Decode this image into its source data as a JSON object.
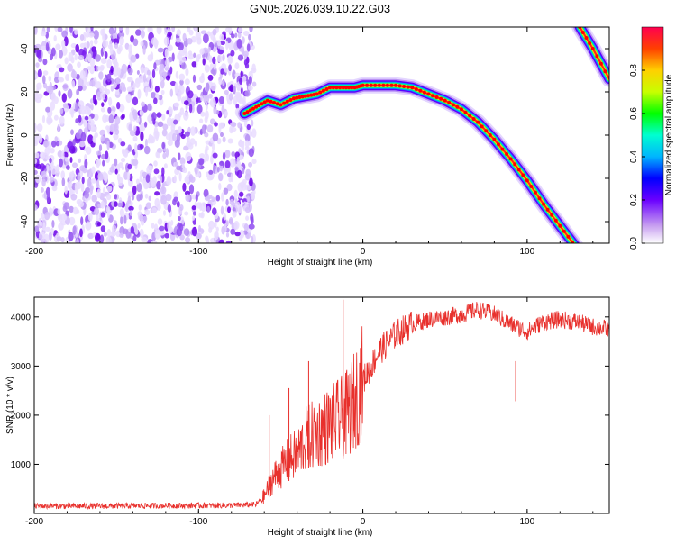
{
  "title": "GN05.2026.039.10.22.G03",
  "colors": {
    "spectrogram_track": "#ff0000",
    "scatter": "#8a2be2",
    "snr_line": "#e8302c",
    "axis": "#000000"
  },
  "chart_data": [
    {
      "type": "heatmap",
      "name": "spectrogram",
      "xlabel": "Height of straight line (km)",
      "ylabel": "Frequency (Hz)",
      "xlim": [
        -200,
        150
      ],
      "ylim": [
        -50,
        50
      ],
      "xticks": [
        -200,
        -100,
        0,
        100
      ],
      "xtick_labels": [
        "-200",
        "-100",
        "0",
        "100"
      ],
      "yticks": [
        -40,
        -20,
        0,
        20,
        40
      ],
      "ytick_labels": [
        "-40",
        "-20",
        "0",
        "20",
        "40"
      ],
      "noise_region_x": [
        -200,
        -66
      ],
      "ridge": {
        "x": [
          -72,
          -65,
          -58,
          -50,
          -42,
          -35,
          -28,
          -20,
          -12,
          -5,
          0,
          10,
          20,
          30,
          40,
          50,
          60,
          70,
          80,
          90,
          100,
          110,
          120,
          130
        ],
        "y": [
          10,
          13,
          16,
          14,
          17,
          18,
          19,
          22,
          22,
          22,
          23,
          23,
          23,
          22,
          19,
          16,
          12,
          6,
          -2,
          -11,
          -21,
          -32,
          -42,
          -52
        ]
      },
      "secondary_ridge": {
        "x": [
          132,
          140,
          150
        ],
        "y": [
          50,
          40,
          26
        ]
      },
      "colorbar": {
        "label": "Normalized spectral amplitude",
        "range": [
          0,
          1
        ],
        "ticks": [
          "0.0",
          "0.2",
          "0.4",
          "0.6",
          "0.8"
        ]
      }
    },
    {
      "type": "line",
      "name": "snr",
      "xlabel": "Height of straight line (km)",
      "ylabel": "SNR (10 * v/v)",
      "xlim": [
        -200,
        150
      ],
      "ylim": [
        0,
        4400
      ],
      "xticks": [
        -200,
        -100,
        0,
        100
      ],
      "xtick_labels": [
        "-200",
        "-100",
        "0",
        "100"
      ],
      "yticks": [
        1000,
        2000,
        3000,
        4000
      ],
      "ytick_labels": [
        "1000",
        "2000",
        "3000",
        "4000"
      ],
      "series": [
        {
          "name": "SNR",
          "x": [
            -200,
            -180,
            -160,
            -140,
            -120,
            -100,
            -80,
            -65,
            -60,
            -55,
            -50,
            -45,
            -40,
            -35,
            -30,
            -25,
            -20,
            -15,
            -10,
            -5,
            0,
            5,
            10,
            20,
            30,
            40,
            50,
            60,
            70,
            80,
            90,
            100,
            110,
            120,
            130,
            140,
            150
          ],
          "y": [
            150,
            150,
            150,
            155,
            160,
            160,
            165,
            180,
            350,
            700,
            900,
            1100,
            1200,
            1500,
            1600,
            1700,
            1800,
            1900,
            2000,
            2300,
            2700,
            3000,
            3300,
            3650,
            3850,
            3950,
            4000,
            4050,
            4150,
            4050,
            3850,
            3700,
            3900,
            3950,
            3900,
            3800,
            3750
          ]
        }
      ],
      "spikes": [
        {
          "x": -57,
          "y": 2000
        },
        {
          "x": -45,
          "y": 2550
        },
        {
          "x": -33,
          "y": 3100
        },
        {
          "x": -12,
          "y": 4350
        },
        {
          "x": 93,
          "y": 3100
        }
      ]
    }
  ]
}
